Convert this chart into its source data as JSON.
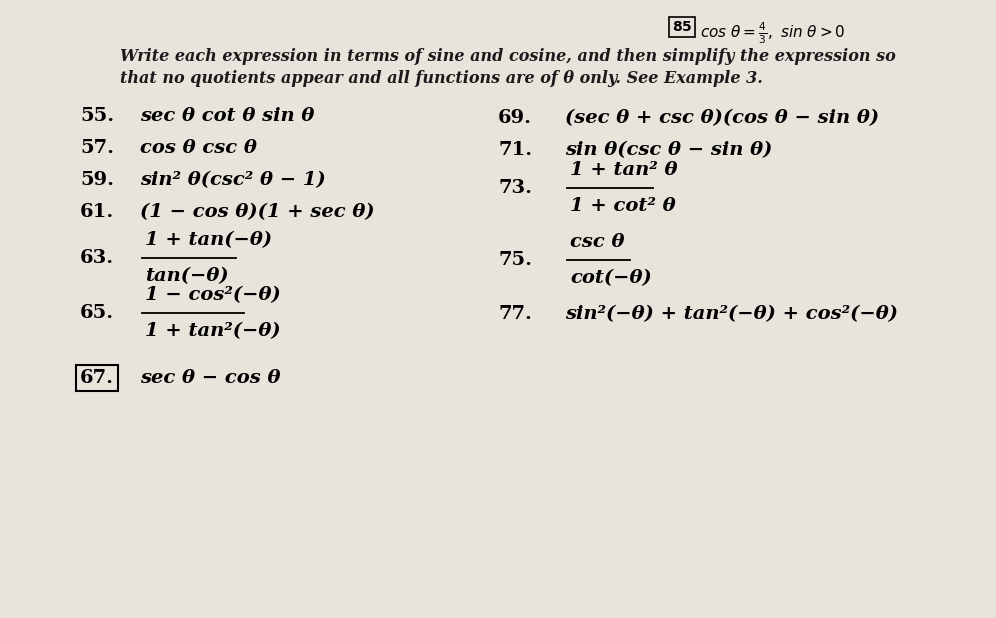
{
  "bg_color": "#e8e4dc",
  "title_line1": "Write each expression in terms of sine and cosine, and then simplify the expression so",
  "title_line2": "that no quotients appear and all functions are of θ only. See Example 3.",
  "items_left": [
    {
      "num": "55.",
      "text": "sec θ cot θ sin θ",
      "type": "inline"
    },
    {
      "num": "57.",
      "text": "cos θ csc θ",
      "type": "inline"
    },
    {
      "num": "59.",
      "text": "sin² θ(csc² θ − 1)",
      "type": "inline"
    },
    {
      "num": "61.",
      "text": "(1 − cos θ)(1 + sec θ)",
      "type": "inline"
    },
    {
      "num": "63.",
      "numerator": "1 + tan(−θ)",
      "denominator": "tan(−θ)",
      "type": "fraction"
    },
    {
      "num": "65.",
      "numerator": "1 − cos²(−θ)",
      "denominator": "1 + tan²(−θ)",
      "type": "fraction"
    },
    {
      "num": "67.",
      "text": "sec θ − cos θ",
      "type": "inline",
      "boxed": true
    }
  ],
  "items_right": [
    {
      "num": "69.",
      "text": "(sec θ + csc θ)(cos θ − sin θ)",
      "type": "inline",
      "y_align": "55"
    },
    {
      "num": "71.",
      "text": "sin θ(csc θ − sin θ)",
      "type": "inline",
      "y_align": "57"
    },
    {
      "num": "73.",
      "numerator": "1 + tan² θ",
      "denominator": "1 + cot² θ",
      "type": "fraction",
      "y_align": "59"
    },
    {
      "num": "75.",
      "numerator": "csc θ",
      "denominator": "cot(−θ)",
      "type": "fraction",
      "y_align": "63"
    },
    {
      "num": "77.",
      "text": "sin²(−θ) + tan²(−θ) + cos²(−θ)",
      "type": "inline",
      "y_align": "65"
    }
  ],
  "header_num": "85",
  "header_text": "cos θ = 4/3, sin θ > 0",
  "font_size_items": 14,
  "font_size_title": 11.5
}
